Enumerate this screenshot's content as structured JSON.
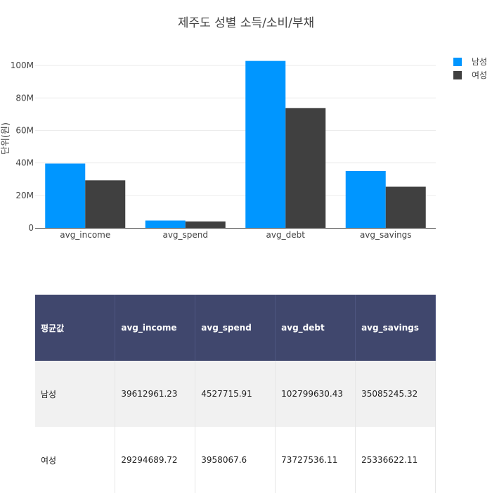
{
  "chart_data": {
    "type": "bar",
    "title": "제주도 성별 소득/소비/부채",
    "ylabel": "단위(원)",
    "xlabel": "",
    "categories": [
      "avg_income",
      "avg_spend",
      "avg_debt",
      "avg_savings"
    ],
    "series": [
      {
        "name": "남성",
        "color": "#0096ff",
        "values": [
          39612961.23,
          4527715.91,
          102799630.43,
          35085245.32
        ]
      },
      {
        "name": "여성",
        "color": "#404040",
        "values": [
          29294689.72,
          3958067.6,
          73727536.11,
          25336622.11
        ]
      }
    ],
    "ylim": [
      0,
      110000000
    ],
    "yticks": [
      0,
      20000000,
      40000000,
      60000000,
      80000000,
      100000000
    ],
    "ytick_labels": [
      "0",
      "20M",
      "40M",
      "60M",
      "80M",
      "100M"
    ],
    "legend_position": "top-right",
    "grid": true
  },
  "table": {
    "headers": [
      "평균값",
      "avg_income",
      "avg_spend",
      "avg_debt",
      "avg_savings"
    ],
    "rows": [
      [
        "남성",
        "39612961.23",
        "4527715.91",
        "102799630.43",
        "35085245.32"
      ],
      [
        "여성",
        "29294689.72",
        "3958067.6",
        "73727536.11",
        "25336622.11"
      ]
    ]
  }
}
